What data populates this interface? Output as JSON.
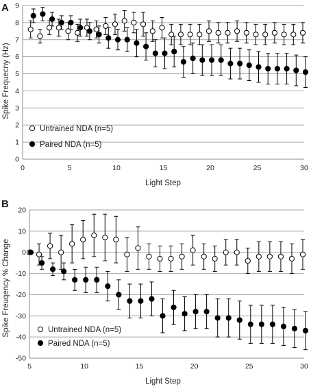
{
  "chart_data": [
    {
      "panel_label": "A",
      "type": "scatter",
      "error_bars": true,
      "xlabel": "Light Step",
      "ylabel": "Spike Frequecny (Hz)",
      "xlim": [
        0,
        30
      ],
      "ylim": [
        0,
        9
      ],
      "xticks": [
        0,
        5,
        10,
        15,
        20,
        25,
        30
      ],
      "yticks": [
        0,
        1,
        2,
        3,
        4,
        5,
        6,
        7,
        8,
        9
      ],
      "grid": "horizontal",
      "legend_position": "bottom-left",
      "x": [
        1,
        2,
        3,
        4,
        5,
        6,
        7,
        8,
        9,
        10,
        11,
        12,
        13,
        14,
        15,
        16,
        17,
        18,
        19,
        20,
        21,
        22,
        23,
        24,
        25,
        26,
        27,
        28,
        29,
        30
      ],
      "series": [
        {
          "name": "Untrained NDA (n=5)",
          "marker": "open-circle",
          "values": [
            7.6,
            7.2,
            7.7,
            7.7,
            7.5,
            7.4,
            7.7,
            7.6,
            7.8,
            7.9,
            8.1,
            8.0,
            7.9,
            7.5,
            7.7,
            7.3,
            7.3,
            7.3,
            7.3,
            7.5,
            7.4,
            7.4,
            7.5,
            7.4,
            7.3,
            7.3,
            7.4,
            7.3,
            7.3,
            7.4
          ],
          "errors": [
            0.5,
            0.4,
            0.4,
            0.5,
            0.5,
            0.5,
            0.5,
            0.5,
            0.5,
            0.6,
            0.6,
            0.6,
            0.7,
            0.6,
            0.6,
            0.6,
            0.6,
            0.6,
            0.6,
            0.6,
            0.6,
            0.6,
            0.6,
            0.6,
            0.6,
            0.6,
            0.6,
            0.6,
            0.6,
            0.6
          ]
        },
        {
          "name": "Paired NDA (n=5)",
          "marker": "filled-circle",
          "values": [
            8.4,
            8.5,
            8.2,
            8.0,
            8.0,
            7.7,
            7.5,
            7.3,
            7.1,
            7.0,
            7.0,
            6.8,
            6.6,
            6.2,
            6.2,
            6.3,
            5.7,
            5.9,
            5.8,
            5.8,
            5.8,
            5.6,
            5.6,
            5.5,
            5.4,
            5.3,
            5.3,
            5.3,
            5.2,
            5.1
          ],
          "errors": [
            0.4,
            0.4,
            0.4,
            0.4,
            0.4,
            0.5,
            0.5,
            0.5,
            0.6,
            0.6,
            0.7,
            0.8,
            0.8,
            0.8,
            0.9,
            0.9,
            0.9,
            0.9,
            0.9,
            0.9,
            0.9,
            0.9,
            0.9,
            0.9,
            0.9,
            0.9,
            0.9,
            0.9,
            0.9,
            0.9
          ]
        }
      ]
    },
    {
      "panel_label": "B",
      "type": "scatter",
      "error_bars": true,
      "xlabel": "Light Step",
      "ylabel": "Spike Freuqency % Change",
      "xlim": [
        5,
        30
      ],
      "ylim": [
        -50,
        20
      ],
      "xticks": [
        5,
        10,
        15,
        20,
        25,
        30
      ],
      "yticks": [
        -50,
        -40,
        -30,
        -20,
        -10,
        0,
        10,
        20
      ],
      "grid": "horizontal",
      "legend_position": "bottom-left",
      "x": [
        5,
        6,
        7,
        8,
        9,
        10,
        11,
        12,
        13,
        14,
        15,
        16,
        17,
        18,
        19,
        20,
        21,
        22,
        23,
        24,
        25,
        26,
        27,
        28,
        29,
        30
      ],
      "series": [
        {
          "name": "Untrained NDA (n=5)",
          "marker": "open-circle",
          "values": [
            0,
            -1,
            3,
            0,
            4,
            6,
            8,
            7,
            6,
            -1,
            2,
            -2,
            -3,
            -3,
            -2,
            1,
            -2,
            -3,
            0,
            0,
            -4,
            -2,
            -2,
            -2,
            -3,
            -1
          ],
          "errors": [
            0,
            5,
            6,
            8,
            9,
            9,
            10,
            11,
            11,
            8,
            10,
            6,
            6,
            6,
            6,
            7,
            6,
            6,
            6,
            6,
            6,
            7,
            7,
            7,
            7,
            7
          ],
          "fixed_first": true
        },
        {
          "name": "Paired NDA (n=5)",
          "marker": "filled-circle",
          "values": [
            0,
            -5,
            -8,
            -9,
            -13,
            -13,
            -13,
            -16,
            -20,
            -23,
            -23,
            -22,
            -30,
            -26,
            -29,
            -28,
            -28,
            -31,
            -31,
            -32,
            -34,
            -34,
            -34,
            -35,
            -36,
            -37
          ],
          "errors": [
            0,
            3,
            3,
            4,
            5,
            6,
            6,
            7,
            7,
            8,
            8,
            8,
            8,
            8,
            8,
            8,
            8,
            9,
            9,
            9,
            9,
            9,
            9,
            9,
            9,
            9
          ]
        }
      ]
    }
  ]
}
